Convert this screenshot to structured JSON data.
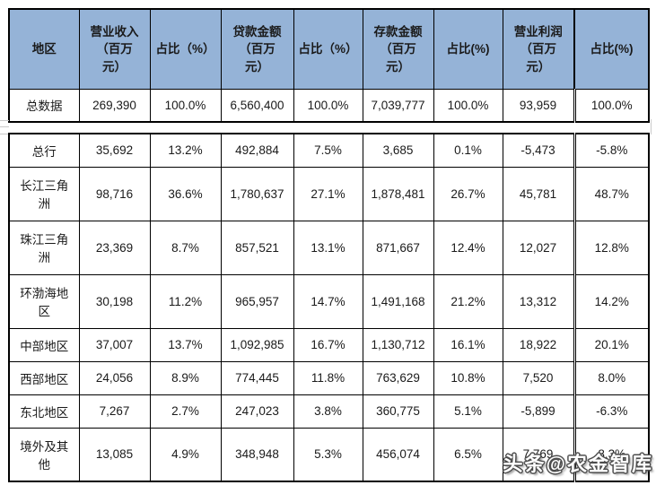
{
  "table": {
    "headers": [
      "地区",
      "营业收入\n（百万\n元）",
      "占比（%）",
      "贷款金额\n（百万\n元）",
      "占比（%）",
      "存款金额\n（百万\n元）",
      "占比(%)",
      "营业利润\n（百万\n元）",
      "占比(%)"
    ],
    "total_row": [
      "总数据",
      "269,390",
      "100.0%",
      "6,560,400",
      "100.0%",
      "7,039,777",
      "100.0%",
      "93,959",
      "100.0%"
    ],
    "rows": [
      [
        "总行",
        "35,692",
        "13.2%",
        "492,884",
        "7.5%",
        "3,685",
        "0.1%",
        "-5,473",
        "-5.8%"
      ],
      [
        "长江三角洲",
        "98,716",
        "36.6%",
        "1,780,637",
        "27.1%",
        "1,878,481",
        "26.7%",
        "45,781",
        "48.7%"
      ],
      [
        "珠江三角洲",
        "23,369",
        "8.7%",
        "857,521",
        "13.1%",
        "871,667",
        "12.4%",
        "12,027",
        "12.8%"
      ],
      [
        "环渤海地区",
        "30,198",
        "11.2%",
        "965,957",
        "14.7%",
        "1,491,168",
        "21.2%",
        "13,312",
        "14.2%"
      ],
      [
        "中部地区",
        "37,007",
        "13.7%",
        "1,092,985",
        "16.7%",
        "1,130,712",
        "16.1%",
        "18,922",
        "20.1%"
      ],
      [
        "西部地区",
        "24,056",
        "8.9%",
        "774,445",
        "11.8%",
        "763,629",
        "10.8%",
        "7,520",
        "8.0%"
      ],
      [
        "东北地区",
        "7,267",
        "2.7%",
        "247,023",
        "3.8%",
        "360,775",
        "5.1%",
        "-5,899",
        "-6.3%"
      ],
      [
        "境外及其他",
        "13,085",
        "4.9%",
        "348,948",
        "5.3%",
        "456,074",
        "6.5%",
        "7,769",
        "8.3%"
      ]
    ]
  },
  "watermark": {
    "text": "头条@农金智库"
  },
  "colors": {
    "header_bg": "#95b3d7",
    "border": "#000000",
    "watermark_fill": "#ffffff",
    "watermark_outline": "#4d4d4d"
  }
}
